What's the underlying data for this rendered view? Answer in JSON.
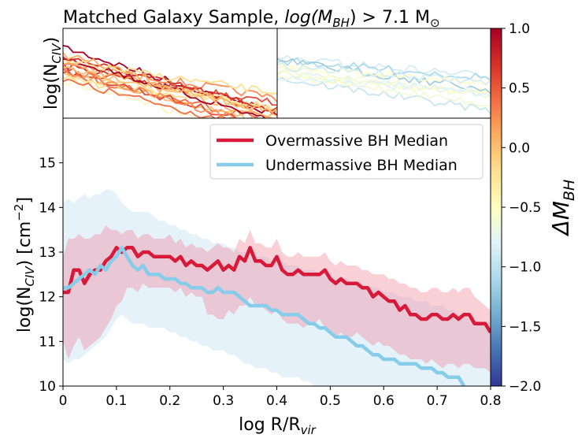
{
  "chart_data": [
    {
      "type": "line",
      "panel": "top",
      "title": "Matched Galaxy Sample, log(M_BH) > 7.1 M_sun",
      "title_parts": {
        "prefix": "Matched Galaxy Sample, ",
        "log": "log",
        "M": "(M",
        "sub": "BH",
        "rest": ") > 7.1 M",
        "sun": "⊙"
      },
      "ylabel": {
        "main": "log(N",
        "sub": "CIV",
        "end": ")"
      },
      "subpanels": [
        "overmassive individual profiles (left)",
        "undermassive individual profiles (right)"
      ],
      "xlim": [
        0,
        0.8
      ],
      "ylim": [
        10,
        16
      ]
    },
    {
      "type": "line",
      "panel": "main",
      "xlabel": {
        "main": "log R/R",
        "sub": "vir"
      },
      "ylabel": {
        "main": "log(N",
        "sub": "CIV",
        "mid": ") [cm",
        "sup": "−2",
        "end": "]"
      },
      "xlim": [
        0,
        0.8
      ],
      "ylim": [
        10,
        16
      ],
      "xticks": [
        "0",
        "0.1",
        "0.2",
        "0.3",
        "0.4",
        "0.5",
        "0.6",
        "0.7",
        "0.8"
      ],
      "yticks": [
        "10",
        "11",
        "12",
        "13",
        "14",
        "15"
      ],
      "x": [
        0.0,
        0.01,
        0.02,
        0.03,
        0.04,
        0.05,
        0.06,
        0.07,
        0.08,
        0.09,
        0.1,
        0.11,
        0.12,
        0.13,
        0.14,
        0.15,
        0.16,
        0.17,
        0.18,
        0.19,
        0.2,
        0.21,
        0.22,
        0.23,
        0.24,
        0.25,
        0.26,
        0.27,
        0.28,
        0.29,
        0.3,
        0.31,
        0.32,
        0.33,
        0.34,
        0.35,
        0.36,
        0.37,
        0.38,
        0.39,
        0.4,
        0.41,
        0.42,
        0.43,
        0.44,
        0.45,
        0.46,
        0.47,
        0.48,
        0.49,
        0.5,
        0.51,
        0.52,
        0.53,
        0.54,
        0.55,
        0.56,
        0.57,
        0.58,
        0.59,
        0.6,
        0.61,
        0.62,
        0.63,
        0.64,
        0.65,
        0.66,
        0.67,
        0.68,
        0.69,
        0.7,
        0.71,
        0.72,
        0.73,
        0.74,
        0.75,
        0.76,
        0.77,
        0.78,
        0.79,
        0.8
      ],
      "series": [
        {
          "name": "Overmassive BH Median",
          "color": "#d7193a",
          "values": [
            12.1,
            12.1,
            12.6,
            12.6,
            12.3,
            12.5,
            12.6,
            12.6,
            12.8,
            12.9,
            13.1,
            13.0,
            13.1,
            13.1,
            12.9,
            13.0,
            13.0,
            12.9,
            12.9,
            12.9,
            12.9,
            12.8,
            12.9,
            12.7,
            12.8,
            12.7,
            12.7,
            12.6,
            12.7,
            12.8,
            12.6,
            12.7,
            12.6,
            12.9,
            12.8,
            13.1,
            12.8,
            12.8,
            12.7,
            12.7,
            12.9,
            12.6,
            12.5,
            12.5,
            12.6,
            12.5,
            12.5,
            12.5,
            12.5,
            12.6,
            12.4,
            12.3,
            12.4,
            12.3,
            12.3,
            12.3,
            12.2,
            12.2,
            12.0,
            12.1,
            12.0,
            11.9,
            11.9,
            11.7,
            11.8,
            11.6,
            11.6,
            11.5,
            11.5,
            11.6,
            11.6,
            11.5,
            11.5,
            11.6,
            11.5,
            11.6,
            11.6,
            11.4,
            11.4,
            11.4,
            11.2
          ],
          "upper": [
            12.9,
            13.3,
            13.3,
            13.4,
            13.3,
            13.3,
            13.4,
            13.4,
            13.6,
            13.5,
            13.5,
            13.4,
            13.5,
            13.5,
            13.3,
            13.4,
            13.4,
            13.3,
            13.3,
            13.3,
            13.4,
            13.2,
            13.3,
            13.1,
            13.2,
            13.1,
            13.1,
            13.0,
            13.1,
            13.2,
            13.1,
            13.1,
            13.0,
            13.3,
            13.2,
            13.5,
            13.2,
            13.2,
            13.1,
            13.1,
            13.3,
            13.0,
            12.9,
            12.9,
            13.0,
            12.9,
            12.9,
            12.9,
            12.9,
            13.0,
            12.8,
            12.7,
            12.8,
            12.7,
            12.7,
            12.7,
            12.6,
            12.6,
            12.5,
            12.5,
            12.5,
            12.4,
            12.4,
            12.3,
            12.3,
            12.2,
            12.2,
            12.1,
            12.1,
            12.2,
            12.2,
            12.1,
            12.1,
            12.2,
            12.1,
            12.2,
            12.2,
            12.0,
            11.9,
            11.8,
            11.7
          ],
          "lower": [
            11.0,
            10.6,
            10.9,
            11.1,
            10.8,
            10.9,
            11.0,
            11.1,
            11.3,
            11.5,
            11.8,
            11.9,
            12.2,
            12.2,
            12.1,
            12.3,
            12.2,
            12.2,
            12.2,
            12.2,
            12.2,
            12.1,
            12.2,
            12.0,
            12.1,
            12.0,
            12.0,
            11.6,
            11.6,
            11.5,
            11.5,
            11.7,
            11.6,
            11.8,
            11.8,
            12.0,
            11.8,
            11.8,
            11.7,
            11.6,
            11.7,
            11.5,
            11.4,
            11.4,
            11.4,
            11.3,
            11.4,
            11.4,
            11.5,
            11.3,
            11.2,
            11.1,
            11.2,
            11.1,
            11.1,
            11.2,
            11.1,
            11.0,
            10.9,
            11.0,
            10.9,
            10.9,
            10.8,
            10.7,
            10.7,
            10.6,
            10.6,
            10.6,
            10.5,
            10.6,
            10.5,
            10.4,
            10.5,
            10.5,
            10.4,
            10.5,
            10.5,
            10.4,
            10.4,
            10.4,
            10.3
          ]
        },
        {
          "name": "Undermassive BH Median",
          "color": "#87cde9",
          "values": [
            12.2,
            12.2,
            12.3,
            12.4,
            12.5,
            12.6,
            12.5,
            12.7,
            12.6,
            12.8,
            12.9,
            13.1,
            12.9,
            12.7,
            12.6,
            12.7,
            12.5,
            12.5,
            12.5,
            12.4,
            12.4,
            12.4,
            12.3,
            12.3,
            12.2,
            12.2,
            12.2,
            12.1,
            12.1,
            12.2,
            12.1,
            12.1,
            12.1,
            12.0,
            11.9,
            11.8,
            11.8,
            11.8,
            11.8,
            11.7,
            11.7,
            11.6,
            11.6,
            11.6,
            11.6,
            11.5,
            11.4,
            11.4,
            11.3,
            11.3,
            11.2,
            11.1,
            11.1,
            11.1,
            11.0,
            10.9,
            10.9,
            10.8,
            10.7,
            10.7,
            10.6,
            10.6,
            10.6,
            10.5,
            10.5,
            10.5,
            10.5,
            10.4,
            10.4,
            10.4,
            10.3,
            10.3,
            10.2,
            10.2,
            10.2,
            10.0,
            null,
            null,
            null,
            null,
            null
          ],
          "upper": [
            14.1,
            14.2,
            14.1,
            14.2,
            14.3,
            14.2,
            14.3,
            14.3,
            14.4,
            14.4,
            14.3,
            14.1,
            14.0,
            13.9,
            13.9,
            13.9,
            13.9,
            13.8,
            13.7,
            13.7,
            13.6,
            13.6,
            13.5,
            13.5,
            13.4,
            13.4,
            13.3,
            13.3,
            13.2,
            13.2,
            13.2,
            13.1,
            13.1,
            13.0,
            13.0,
            13.0,
            12.9,
            12.9,
            12.9,
            12.8,
            12.8,
            12.8,
            12.7,
            12.7,
            12.7,
            12.6,
            12.6,
            12.6,
            12.5,
            12.5,
            12.5,
            12.4,
            12.4,
            12.4,
            12.3,
            12.3,
            12.3,
            12.2,
            12.2,
            12.2,
            12.1,
            12.1,
            12.1,
            12.0,
            12.0,
            12.0,
            11.9,
            11.9,
            11.9,
            11.8,
            11.8,
            11.8,
            11.7,
            11.7,
            11.6,
            11.6,
            11.5,
            11.5,
            11.4,
            11.4,
            11.3
          ],
          "lower": [
            10.6,
            10.5,
            10.6,
            10.6,
            10.7,
            10.8,
            10.9,
            11.0,
            11.1,
            11.3,
            11.5,
            11.6,
            11.5,
            11.4,
            11.4,
            11.4,
            11.3,
            11.3,
            11.3,
            11.3,
            11.2,
            11.2,
            11.1,
            11.1,
            11.0,
            11.0,
            10.9,
            10.9,
            10.8,
            10.8,
            10.8,
            10.7,
            10.7,
            10.6,
            10.5,
            10.5,
            10.4,
            10.4,
            10.4,
            10.3,
            10.3,
            10.2,
            10.2,
            10.2,
            10.2,
            10.1,
            10.1,
            10.0,
            10.0,
            10.0,
            10.0,
            10.0,
            10.0,
            10.0,
            10.0,
            10.0,
            10.0,
            10.0,
            10.0,
            10.0,
            10.0,
            10.0,
            10.0,
            10.0,
            10.0,
            10.0,
            10.0,
            10.0,
            10.0,
            10.0,
            10.0,
            10.0,
            10.0,
            10.0,
            10.0,
            10.0,
            10.0,
            10.0,
            10.0,
            10.0,
            10.0
          ]
        }
      ],
      "legend": {
        "placement": "top-right",
        "entries": [
          "Overmassive BH Median",
          "Undermassive BH Median"
        ]
      },
      "grid": false
    },
    {
      "type": "colorbar",
      "label": {
        "main": "ΔM",
        "sub": "BH"
      },
      "range": [
        -2.0,
        1.0
      ],
      "ticks": [
        "1.0",
        "0.5",
        "0.0",
        "−0.5",
        "−1.0",
        "−1.5",
        "−2.0"
      ],
      "colors": [
        "#a50026",
        "#d73027",
        "#f46d43",
        "#fdae61",
        "#fee090",
        "#ffffbf",
        "#e0f3f8",
        "#abd9e9",
        "#74add1",
        "#4575b4",
        "#313695"
      ]
    }
  ]
}
